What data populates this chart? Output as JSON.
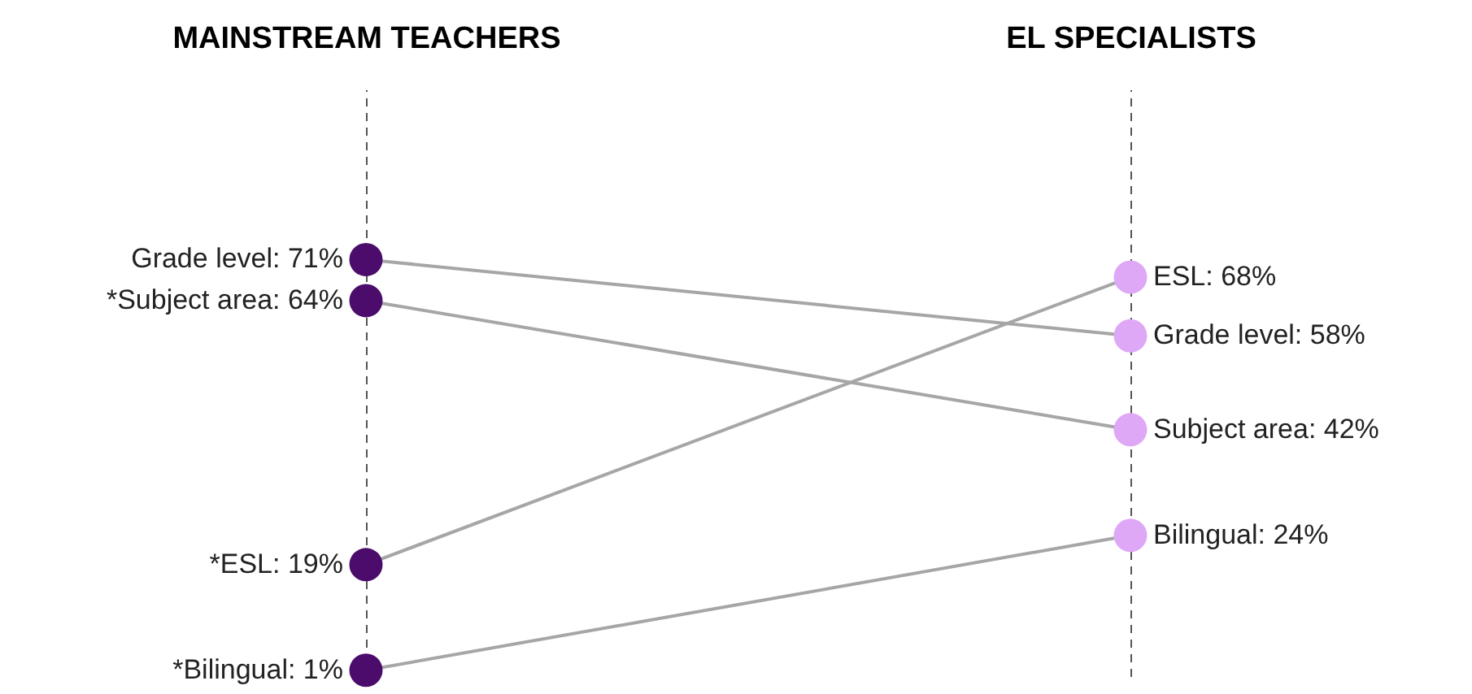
{
  "chart_data": {
    "type": "line",
    "categories": [
      "MAINSTREAM TEACHERS",
      "EL SPECIALISTS"
    ],
    "ylim": [
      0,
      100
    ],
    "tick_labels": "x",
    "grid": "x",
    "marker": "circle",
    "line_style": "solid",
    "series": [
      {
        "color": "#a6a6a6",
        "colors": [
          "#4b0c6b",
          "#dfa8f7"
        ],
        "values": [
          71,
          58
        ],
        "value_labels": [
          "Grade level:  71%",
          "Grade level:  58%"
        ]
      },
      {
        "color": "#a6a6a6",
        "colors": [
          "#4b0c6b",
          "#dfa8f7"
        ],
        "values": [
          64,
          42
        ],
        "value_labels": [
          "*Subject area: 64%",
          "Subject area: 42%"
        ]
      },
      {
        "color": "#a6a6a6",
        "colors": [
          "#4b0c6b",
          "#dfa8f7"
        ],
        "values": [
          19,
          68
        ],
        "value_labels": [
          "*ESL: 19%",
          "ESL: 68%"
        ]
      },
      {
        "color": "#a6a6a6",
        "colors": [
          "#4b0c6b",
          "#dfa8f7"
        ],
        "values": [
          1,
          24
        ],
        "value_labels": [
          "*Bilingual: 1%",
          "Bilingual: 24%"
        ]
      }
    ]
  }
}
